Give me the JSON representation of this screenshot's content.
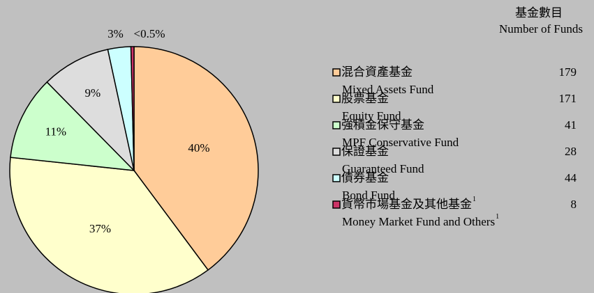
{
  "chart_data": {
    "type": "pie",
    "legend_title_zh": "基金數目",
    "legend_title_en": "Number of Funds",
    "categories_zh": [
      "混合資產基金",
      "股票基金",
      "強積金保守基金",
      "保證基金",
      "債券基金",
      "貨幣市場基金及其他基金"
    ],
    "categories_en": [
      "Mixed Assets Fund",
      "Equity Fund",
      "MPF Conservative Fund",
      "Guaranteed Fund",
      "Bond Fund",
      "Money Market Fund and Others"
    ],
    "values": [
      40,
      37,
      11,
      9,
      3,
      0.4
    ],
    "value_labels": [
      "40%",
      "37%",
      "11%",
      "9%",
      "3%",
      "<0.5%"
    ],
    "colors": [
      "#ffcc99",
      "#ffffcc",
      "#ccffcc",
      "#dddddd",
      "#ccffff",
      "#cc3366"
    ],
    "fund_counts": [
      179,
      171,
      41,
      28,
      44,
      8
    ],
    "footnote": {
      "mark": "1",
      "category": 5
    }
  }
}
